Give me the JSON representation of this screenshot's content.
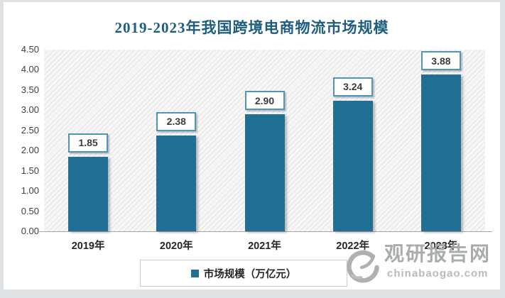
{
  "title": "2019-2023年我国跨境电商物流市场规模",
  "chart_data": {
    "type": "bar",
    "title": "2019-2023年我国跨境电商物流市场规模",
    "categories": [
      "2019年",
      "2020年",
      "2021年",
      "2022年",
      "2023年"
    ],
    "values": [
      1.85,
      2.38,
      2.9,
      3.24,
      3.88
    ],
    "data_labels": [
      "1.85",
      "2.38",
      "2.90",
      "3.24",
      "3.88"
    ],
    "series_name": "市场规模（万亿元）",
    "xlabel": "",
    "ylabel": "",
    "ylim": [
      0,
      4.5
    ],
    "ytick_labels": [
      "0.00",
      "0.50",
      "1.00",
      "1.50",
      "2.00",
      "2.50",
      "3.00",
      "3.50",
      "4.00",
      "4.50"
    ],
    "grid": false,
    "legend_position": "bottom",
    "bar_color": "#216f94",
    "value_box_border_color": "#4e97ba",
    "plot_background": "diagonal-hatch"
  },
  "legend": {
    "label": "市场规模（万亿元）",
    "marker_color": "#216f94"
  },
  "watermark": {
    "logo": "swirl-logo",
    "site_name": "观研报告网",
    "site_url": "chinabaogao.com"
  },
  "colors": {
    "title": "#1d5d7e",
    "bar": "#216f94",
    "axis_line": "#a6a6a6",
    "tick_text": "#3f3f3f",
    "watermark_gray": "#a2a6a5"
  }
}
